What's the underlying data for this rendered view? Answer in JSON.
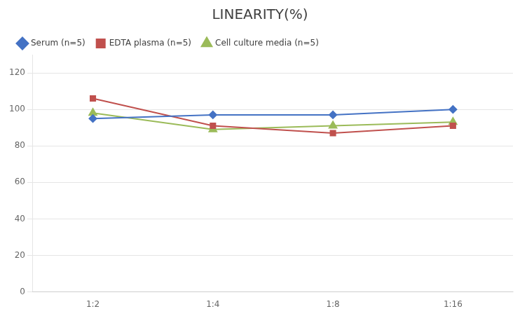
{
  "chart_data": {
    "type": "line",
    "title": "LINEARITY(%)",
    "categories": [
      "1:2",
      "1:4",
      "1:8",
      "1:16"
    ],
    "series": [
      {
        "name": "Serum (n=5)",
        "color": "#4472C4",
        "marker": "diamond",
        "values": [
          95,
          97,
          97,
          100
        ]
      },
      {
        "name": "EDTA plasma (n=5)",
        "color": "#C0504D",
        "marker": "square",
        "values": [
          106,
          91,
          87,
          91
        ]
      },
      {
        "name": "Cell culture media (n=5)",
        "color": "#9BBB59",
        "marker": "triangle",
        "values": [
          98,
          89,
          91,
          93
        ]
      }
    ],
    "ylim": [
      0,
      130
    ],
    "yticks": [
      0,
      20,
      40,
      60,
      80,
      100,
      120
    ],
    "grid": true,
    "legend": "upper left"
  }
}
